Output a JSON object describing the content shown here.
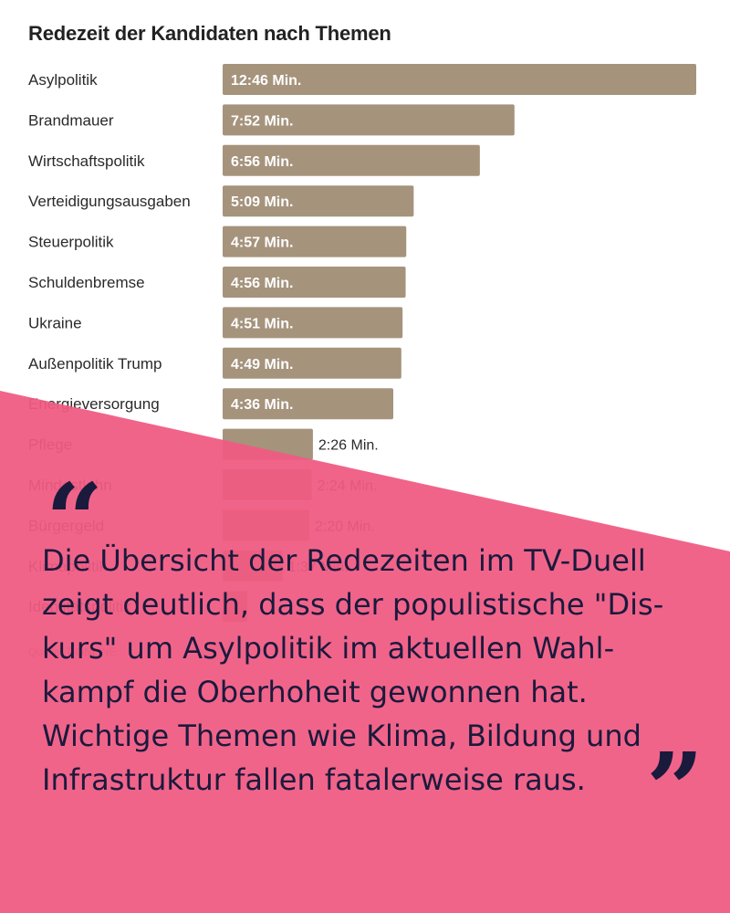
{
  "chart_data": {
    "type": "bar",
    "orientation": "horizontal",
    "title": "Redezeit der Kandidaten nach Themen",
    "categories": [
      "Asylpolitik",
      "Brandmauer",
      "Wirtschaftspolitik",
      "Verteidigungsausgaben",
      "Steuerpolitik",
      "Schuldenbremse",
      "Ukraine",
      "Außenpolitik Trump",
      "Energieversorgung",
      "Pflege",
      "Mindestlohn",
      "Bürgergeld",
      "Klimapolitik",
      "Identitätspolitik"
    ],
    "values_seconds": [
      766,
      472,
      416,
      309,
      297,
      296,
      291,
      289,
      276,
      146,
      144,
      140,
      97,
      40
    ],
    "labels": [
      "12:46 Min.",
      "7:52 Min.",
      "6:56 Min.",
      "5:09 Min.",
      "4:57 Min.",
      "4:56 Min.",
      "4:51 Min.",
      "4:49 Min.",
      "4:36 Min.",
      "2:26 Min.",
      "2:24 Min.",
      "2:20 Min.",
      "1:37 Min.",
      ""
    ],
    "source": "Quelle: T-ONLINE",
    "bar_color": "#a5937c"
  },
  "overlay": {
    "color": "#f05a82",
    "quote_mark_color": "#1a1a3d",
    "open_quote": "“",
    "close_quote": "”",
    "text": "Die Übersicht der Redezeiten im TV-Duell zeigt deutlich, dass der populistische \"Dis-kurs\" um Asylpolitik im aktuellen Wahl-kampf die Oberhoheit gewonnen hat. Wichtige Themen wie Klima, Bildung und Infrastruktur fallen fatalerweise raus."
  }
}
